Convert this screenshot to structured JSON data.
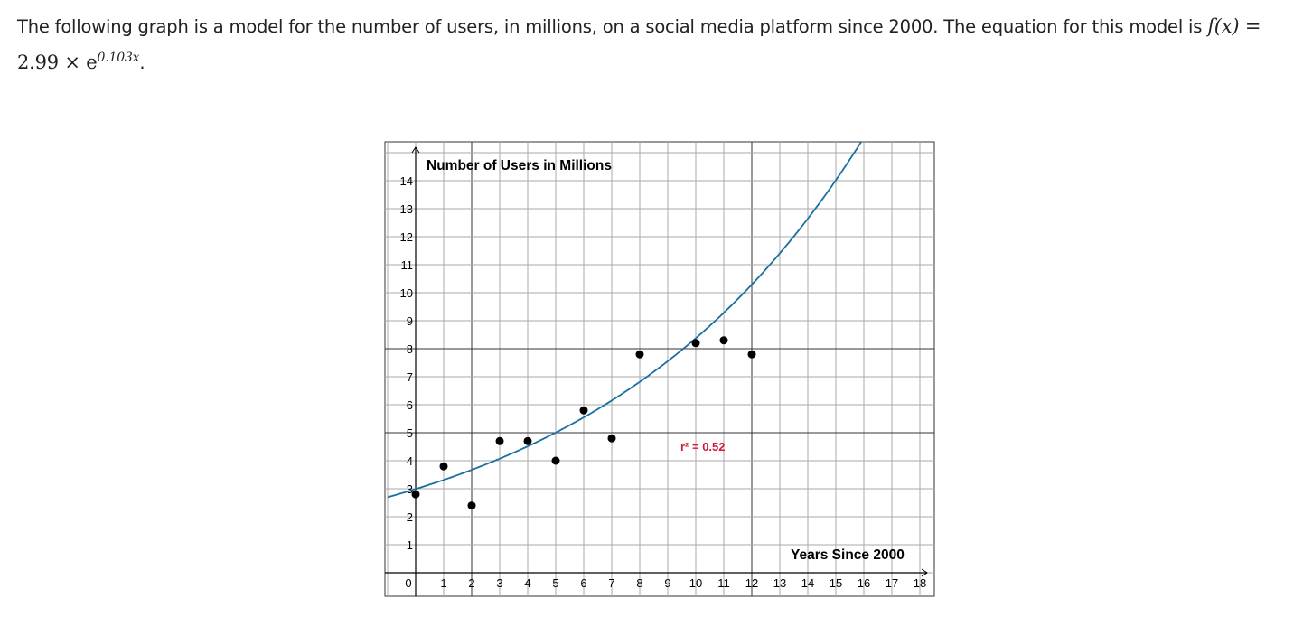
{
  "intro": {
    "text": "The following graph is a model for the number of users, in millions, on a social media platform since 2000. The equation for this model is",
    "equation_lhs": "f(x) = ",
    "equation_coef": "2.99 × e",
    "equation_exp": "0.103x",
    "period": "."
  },
  "chart_data": {
    "type": "scatter",
    "title": "Number of Users in Millions",
    "xlabel": "Years Since 2000",
    "ylabel": "",
    "xlim": [
      0,
      18
    ],
    "ylim": [
      0,
      14
    ],
    "grid": true,
    "x_ticks": [
      "0",
      "1",
      "2",
      "3",
      "4",
      "5",
      "6",
      "7",
      "8",
      "9",
      "10",
      "11",
      "12",
      "13",
      "14",
      "15",
      "16",
      "17",
      "18"
    ],
    "y_ticks": [
      "1",
      "2",
      "3",
      "4",
      "5",
      "6",
      "7",
      "8",
      "9",
      "10",
      "11",
      "12",
      "13",
      "14"
    ],
    "points": [
      {
        "x": 0,
        "y": 2.8
      },
      {
        "x": 1,
        "y": 3.8
      },
      {
        "x": 2,
        "y": 2.4
      },
      {
        "x": 3,
        "y": 4.7
      },
      {
        "x": 4,
        "y": 4.7
      },
      {
        "x": 5,
        "y": 4.0
      },
      {
        "x": 6,
        "y": 5.8
      },
      {
        "x": 7,
        "y": 4.8
      },
      {
        "x": 8,
        "y": 7.8
      },
      {
        "x": 10,
        "y": 8.2
      },
      {
        "x": 11,
        "y": 8.3
      },
      {
        "x": 12,
        "y": 7.8
      }
    ],
    "model": {
      "a": 2.99,
      "b": 0.103,
      "form": "exponential"
    },
    "annotation": "r² = 0.52",
    "colors": {
      "curve": "#1a6fa0",
      "points": "#000000",
      "annotation": "#d6183d"
    }
  }
}
